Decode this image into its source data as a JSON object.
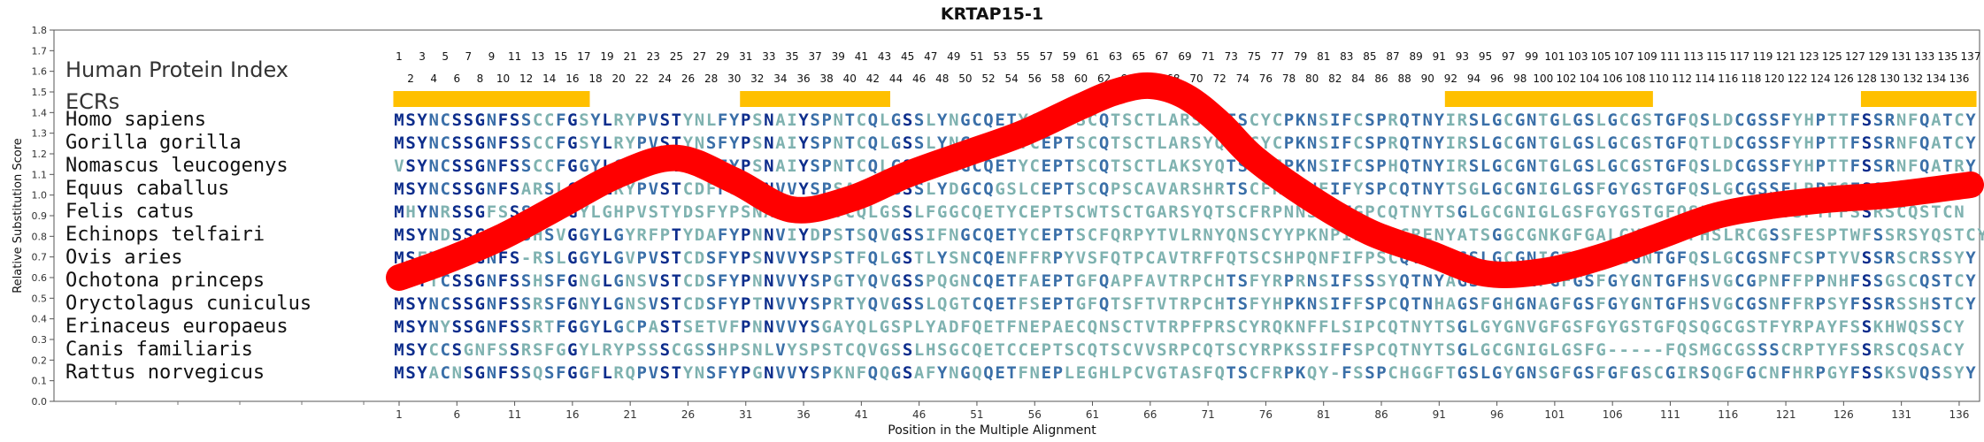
{
  "chart_data": {
    "type": "line",
    "title": "KRTAP15-1",
    "xlabel": "Position in the Multiple Alignment",
    "ylabel": "Relative Substitution Score",
    "xlim": [
      1,
      137
    ],
    "ylim": [
      0.0,
      1.8
    ],
    "yticks": [
      "0.0",
      "0.1",
      "0.2",
      "0.3",
      "0.4",
      "0.5",
      "0.6",
      "0.7",
      "0.8",
      "0.9",
      "1.0",
      "1.1",
      "1.2",
      "1.3",
      "1.4",
      "1.5",
      "1.6",
      "1.7",
      "1.8"
    ],
    "xticks": [
      1,
      6,
      11,
      16,
      21,
      26,
      31,
      36,
      41,
      46,
      51,
      56,
      61,
      66,
      71,
      76,
      81,
      86,
      91,
      96,
      101,
      106,
      111,
      116,
      121,
      126,
      131,
      136
    ],
    "grid": false,
    "index_label": "Human Protein Index",
    "ecr_label": "ECRs",
    "index_odd": [
      1,
      3,
      5,
      7,
      9,
      11,
      13,
      15,
      17,
      19,
      21,
      23,
      25,
      27,
      29,
      31,
      33,
      35,
      37,
      39,
      41,
      43,
      45,
      47,
      49,
      51,
      53,
      55,
      57,
      59,
      61,
      63,
      65,
      67,
      69,
      71,
      73,
      75,
      77,
      79,
      81,
      83,
      85,
      87,
      89,
      91,
      93,
      95,
      97,
      99,
      101,
      103,
      105,
      107,
      109,
      111,
      113,
      115,
      117,
      119,
      121,
      123,
      125,
      127,
      129,
      131,
      133,
      135,
      137
    ],
    "index_even": [
      2,
      4,
      6,
      8,
      10,
      12,
      14,
      16,
      18,
      20,
      22,
      24,
      26,
      28,
      30,
      32,
      34,
      36,
      38,
      40,
      42,
      44,
      46,
      48,
      50,
      52,
      54,
      56,
      58,
      60,
      62,
      64,
      66,
      68,
      70,
      72,
      74,
      76,
      78,
      80,
      82,
      84,
      86,
      88,
      90,
      92,
      94,
      96,
      98,
      100,
      102,
      104,
      106,
      108,
      110,
      112,
      114,
      116,
      118,
      120,
      122,
      124,
      126,
      128,
      130,
      132,
      134,
      136
    ],
    "ecrs": [
      [
        1,
        17
      ],
      [
        31,
        43
      ],
      [
        92,
        109
      ],
      [
        128,
        137
      ]
    ],
    "series": [
      {
        "color": "#ff0000",
        "x": [
          1,
          5,
          10,
          15,
          20,
          25,
          30,
          35,
          40,
          45,
          50,
          55,
          60,
          63,
          66,
          69,
          72,
          75,
          80,
          85,
          90,
          95,
          100,
          105,
          110,
          115,
          120,
          125,
          130,
          137
        ],
        "y": [
          0.6,
          0.68,
          0.8,
          0.95,
          1.1,
          1.18,
          1.07,
          0.93,
          0.98,
          1.1,
          1.2,
          1.3,
          1.43,
          1.5,
          1.53,
          1.48,
          1.35,
          1.18,
          0.98,
          0.82,
          0.72,
          0.62,
          0.63,
          0.7,
          0.8,
          0.9,
          0.95,
          0.98,
          1.0,
          1.05
        ]
      }
    ],
    "sequences": [
      {
        "species": "Homo sapiens",
        "seq": "MSYNCSSGNFSSCCFGSYLRYPVSTYNLFYPSNAIYSPNTCQLGSSLYNGCQETYCEPTSCQTSCTLARSYQTSCYCPKNSIFCSPRQTNYIRSLGCGNTGLGSLGCGSTGFQSLDCGSSFYHPTTFSSRNFQATCY"
      },
      {
        "species": "Gorilla gorilla",
        "seq": "MSYNCSSGNFSSCCFGSYLRYPVSTYNSFYPSNAIYSPNTCQLGSSLYNGCQETYCEPTSCQTSCTLARSYQTSCYCPKNSIFCSPRQTNYIRSLGCGNTGLGSLGCGSTGFQTLDCGSSFYHPTTFSSRNFQATCY"
      },
      {
        "species": "Nomascus leucogenys",
        "seq": "VSYNCSSGNFSSCCFGGYLGYPVSTYNSFYPSNAIYSPNTCQLGSSVYNGCQETYCEPTSCQTSCTLAKSYQTSCYCPKNSIFCSPHQTNYIRSLGCGNTGLGSLGCGSTGFQSLDCGSSFYHPTTFSSRNFQATRY"
      },
      {
        "species": "Equus caballus",
        "seq": "MSYNCSSGNFSARSLGGYLRYPVSTCDFFSPSNVVYSPSACQLGSSLYDGCQGSLCEPTSCQPSCAVARSHRTSCFRPKNFIFYSPCQTNYTSGLGCGNIGLGSFGYGSTGFQSLGCGSSFLRPTCFSSRSCQSTCY"
      },
      {
        "species": "Felis catus",
        "seq": "MHYNRSSGFSSSGLGGYLGHPVSTYDSFYPSNAVYSPSTCQLGSSLFGGCQETYCEPTSCWTSCTGARSYQTSCFRPNNSIFFGPCQTNYTSGLGCGNIGLGSFGYGSTGFQSLGCGSSFYSPTFFSSRSCQSTCN"
      },
      {
        "species": "Echinops telfairi",
        "seq": "MSYNDSSGTFSSHSVGGYLGYRFPTYDAFYPNNVIYDPSTSQVGSSIFNGCQETYCEPTSCFQRPYTVLRNYQNSCYYPKNPILCRPCRENYATSGGCGNKGFGALGYGNYGFHSLRCGSSFESPTWFSSRSYQSTCY"
      },
      {
        "species": "Ovis aries",
        "seq": "MSFNCSTGNFS-RSLGGYLGVPVSTCDSFYPSNVVYSPSTFQLGSTLYSNCQENFFRPYVSFQTPCAVTRFFQTSCSHPQNFIFPSCQTIYTGSLGCGNIGTGSFGCGNTGFQSLGCGSNFCSPTYVSSRSCRSSYY"
      },
      {
        "species": "Ochotona princeps",
        "seq": "MSYTCSSGNFSSHSFGNGLGNSVSTCDSFYPNNVVYSPGTYQVGSSPQGNCQETFAEPTGFQAPFAVTRPCHTSFYRPRNSIFSSSYQTNYAGSVGYGNFGFGSFGYGNTGFHSVGCGPNFFPPNHFSSGSCQSTCY"
      },
      {
        "species": "Oryctolagus cuniculus",
        "seq": "MSYNCSSGNFSSRSFGNYLGNSVSTCDSFYPTNVVYSPRTYQVGSSLQGTCQETFSEPTGFQTSFTVTRPCHTSFYHPKNSIFFSPCQTNHAGSFGHGNAGFGSFGYGNTGFHSVGCGSNFFRPSYFSSRSSHSTCY"
      },
      {
        "species": "Erinaceus europaeus",
        "seq": "MSYNYSSGNFSSRTFGGYLGCPASTSETVFPNNVVYSGAYQLGSPLYADFQETFNEPAECQNSCTVTRPFPRSCYRQKNFFLSIPCQTNYTSGLGYGNVGFGSFGYGSTGFQSQGCGSTFYRPAYFSSKHWQSSCY"
      },
      {
        "species": "Canis familiaris",
        "seq": "MSYCCSGNFSSRSFGGYLRYPSSSCGSSHPSNLVYSPSTCQVGSSLHSGCQETCCEPTSCQTSCVVSRPCQTSCYRPKSSIFFSPCQTNYTSGLGCGNIGLGSFG-----FQSMGCGSSSCRPTYFSSRSCQSACY"
      },
      {
        "species": "Rattus norvegicus",
        "seq": "MSYACNSGNFSSQSFGGFLRQPVSTYNSFYPGNVVYSPKNFQQGSAFYNGQQETFNEPLEGHLPCVGTASFQTSCFRPKQY-FSSPCHGGFTGSLGYGNSGFGSFGFGSCGIRSQGFGCNFHRPGYFSSKSVQSSYY"
      }
    ]
  },
  "colors": {
    "line": "#ff0000",
    "ecr": "#ffc000",
    "conserved": "#0d2d8c",
    "moderate": "#3a6fa8",
    "variable": "#7fb2b0"
  }
}
